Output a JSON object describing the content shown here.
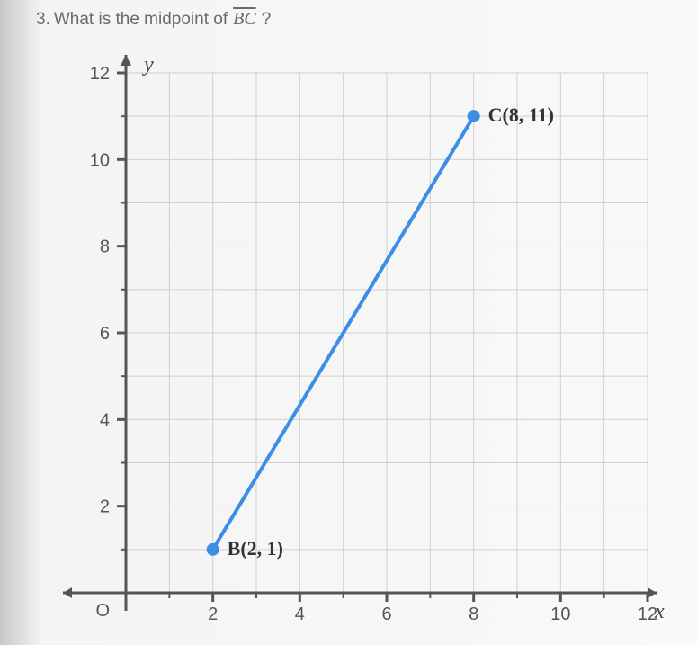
{
  "question": {
    "number": "3.",
    "prefix": "What is the midpoint of",
    "segment_name": "BC",
    "suffix": "?"
  },
  "chart": {
    "type": "line",
    "background_color": "#f7f7f7",
    "grid_color": "#d0d0d0",
    "axis_color": "#555555",
    "x": {
      "min": 0,
      "max": 12,
      "ticks": [
        2,
        4,
        6,
        8,
        10,
        12
      ],
      "label": "x"
    },
    "y": {
      "min": 0,
      "max": 12,
      "ticks": [
        2,
        4,
        6,
        8,
        10,
        12
      ],
      "label": "y"
    },
    "origin_label": "O",
    "segment": {
      "color": "#3a8ee6",
      "width": 4,
      "from": "B",
      "to": "C"
    },
    "points": {
      "B": {
        "x": 2,
        "y": 1,
        "label": "B(2, 1)",
        "color": "#3a8ee6",
        "label_dx": 16,
        "label_dy": 6
      },
      "C": {
        "x": 8,
        "y": 11,
        "label": "C(8, 11)",
        "color": "#3a8ee6",
        "label_dx": 16,
        "label_dy": 6
      }
    },
    "point_radius": 7
  }
}
